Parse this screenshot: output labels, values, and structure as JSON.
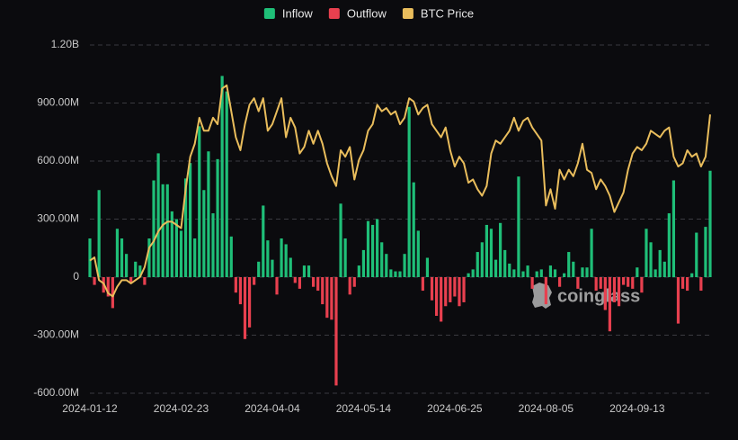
{
  "chart_data": {
    "type": "bar",
    "watermark": "coinglass",
    "categories": [
      "2024-01-12",
      null,
      null,
      null,
      null,
      null,
      null,
      null,
      null,
      null,
      null,
      null,
      null,
      null,
      null,
      null,
      null,
      null,
      null,
      null,
      "2024-02-23",
      null,
      null,
      null,
      null,
      null,
      null,
      null,
      null,
      null,
      null,
      null,
      null,
      null,
      null,
      null,
      null,
      null,
      null,
      null,
      "2024-04-04",
      null,
      null,
      null,
      null,
      null,
      null,
      null,
      null,
      null,
      null,
      null,
      null,
      null,
      null,
      null,
      null,
      null,
      null,
      null,
      "2024-05-14",
      null,
      null,
      null,
      null,
      null,
      null,
      null,
      null,
      null,
      null,
      null,
      null,
      null,
      null,
      null,
      null,
      null,
      null,
      null,
      "2024-06-25",
      null,
      null,
      null,
      null,
      null,
      null,
      null,
      null,
      null,
      null,
      null,
      null,
      null,
      null,
      null,
      null,
      null,
      null,
      null,
      "2024-08-05",
      null,
      null,
      null,
      null,
      null,
      null,
      null,
      null,
      null,
      null,
      null,
      null,
      null,
      null,
      null,
      null,
      null,
      null,
      null,
      "2024-09-13",
      null,
      null,
      null,
      null,
      null,
      null,
      null,
      null,
      null,
      null,
      null,
      null,
      null,
      null,
      null,
      null
    ],
    "series": [
      {
        "name": "Inflow",
        "type": "bar",
        "color": "#1fbf78",
        "values": [
          200,
          null,
          450,
          null,
          null,
          null,
          250,
          200,
          120,
          null,
          80,
          60,
          null,
          200,
          500,
          640,
          480,
          480,
          340,
          300,
          240,
          510,
          590,
          200,
          780,
          450,
          650,
          330,
          610,
          1040,
          960,
          210,
          null,
          null,
          null,
          null,
          null,
          80,
          370,
          190,
          90,
          null,
          200,
          170,
          100,
          null,
          null,
          60,
          60,
          null,
          null,
          null,
          null,
          null,
          null,
          380,
          200,
          null,
          null,
          60,
          140,
          290,
          270,
          300,
          180,
          120,
          40,
          30,
          30,
          120,
          880,
          490,
          240,
          null,
          100,
          null,
          null,
          null,
          null,
          null,
          null,
          null,
          null,
          20,
          40,
          130,
          180,
          270,
          250,
          90,
          280,
          140,
          70,
          40,
          520,
          30,
          60,
          null,
          30,
          40,
          null,
          60,
          40,
          null,
          20,
          130,
          80,
          null,
          50,
          50,
          250,
          null,
          null,
          null,
          null,
          null,
          null,
          null,
          null,
          null,
          50,
          null,
          250,
          180,
          40,
          140,
          80,
          330,
          500,
          null,
          null,
          null,
          20,
          230,
          null,
          260,
          550
        ]
      },
      {
        "name": "Outflow",
        "type": "bar",
        "color": "#e8404f",
        "values": [
          null,
          -40,
          null,
          -80,
          -100,
          -160,
          null,
          null,
          null,
          -30,
          null,
          null,
          -40,
          null,
          null,
          null,
          null,
          null,
          null,
          null,
          null,
          null,
          null,
          null,
          null,
          null,
          null,
          null,
          null,
          null,
          null,
          null,
          -80,
          -140,
          -320,
          -260,
          -40,
          null,
          null,
          null,
          null,
          -90,
          null,
          null,
          null,
          -30,
          -60,
          null,
          null,
          -50,
          -70,
          -140,
          -210,
          -220,
          -560,
          null,
          null,
          -90,
          -50,
          null,
          null,
          null,
          null,
          null,
          null,
          null,
          null,
          null,
          null,
          null,
          null,
          null,
          null,
          -70,
          null,
          -120,
          -200,
          -230,
          -150,
          -130,
          -100,
          -150,
          -130,
          null,
          null,
          null,
          null,
          null,
          null,
          null,
          null,
          null,
          null,
          null,
          null,
          null,
          null,
          -60,
          null,
          null,
          -140,
          null,
          null,
          -50,
          null,
          null,
          null,
          -60,
          null,
          null,
          null,
          -70,
          -60,
          -170,
          -280,
          -130,
          -150,
          -40,
          -50,
          -60,
          null,
          -80,
          null,
          null,
          null,
          null,
          null,
          null,
          null,
          -240,
          -60,
          -70,
          null,
          null,
          -70,
          null,
          null
        ]
      },
      {
        "name": "BTC Price",
        "type": "line",
        "axis": "y2",
        "color": "#e9bd5c",
        "values": [
          46,
          46.5,
          43,
          42.5,
          41,
          40.5,
          42,
          43,
          43,
          42.5,
          43,
          43.5,
          45,
          48,
          49,
          50.5,
          51.5,
          52,
          52,
          51.5,
          51,
          57,
          62,
          64,
          68,
          66,
          66,
          68,
          67,
          72.5,
          73,
          69,
          65,
          63,
          67,
          70,
          71,
          69,
          71,
          66,
          67,
          69,
          71,
          65,
          68,
          66.5,
          62.5,
          63.5,
          66,
          64,
          66,
          64,
          61,
          59,
          57.5,
          63,
          62,
          63.5,
          58.5,
          61.5,
          63,
          66,
          67,
          70,
          69,
          69.5,
          68.5,
          69,
          67,
          68,
          71,
          70.5,
          68.5,
          69.5,
          70,
          67,
          66,
          65,
          66.5,
          63,
          60.5,
          62,
          61,
          58,
          58.5,
          57,
          56,
          57.5,
          62.5,
          64.5,
          64,
          65,
          66,
          68,
          66,
          67.5,
          68,
          66.5,
          65.5,
          64.5,
          54.5,
          57,
          54,
          60,
          58.5,
          60,
          59,
          61,
          64,
          60,
          59.5,
          57,
          58.5,
          57.5,
          56,
          53.5,
          55,
          56.5,
          60,
          62.5,
          63.5,
          63,
          64,
          66,
          65.5,
          65,
          66,
          66.5,
          62,
          60.5,
          61,
          63,
          62,
          62.5,
          60.5,
          62,
          68.5
        ]
      }
    ],
    "ylim": [
      -600,
      1200
    ],
    "yticks": [
      {
        "value": 1200,
        "label": "1.20B"
      },
      {
        "value": 900,
        "label": "900.00M"
      },
      {
        "value": 600,
        "label": "600.00M"
      },
      {
        "value": 300,
        "label": "300.00M"
      },
      0,
      {
        "value": -300,
        "label": "-300.00M"
      },
      {
        "value": -600,
        "label": "-600.00M"
      }
    ],
    "y2lim": [
      25.6,
      79.2
    ],
    "grid": true
  }
}
